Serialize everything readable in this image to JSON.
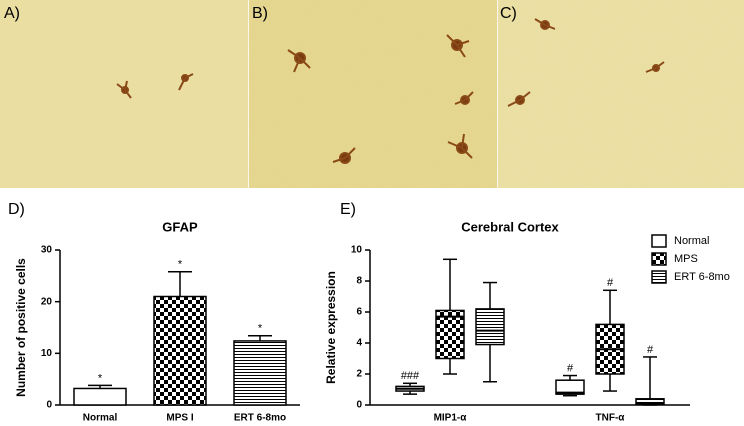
{
  "panels": [
    {
      "label": "A)"
    },
    {
      "label": "B)"
    },
    {
      "label": "C)"
    },
    {
      "label": "D)"
    },
    {
      "label": "E)"
    }
  ],
  "chart_data": [
    {
      "type": "bar",
      "title": "GFAP",
      "y_label": "Number of positive cells",
      "categories": [
        "Normal",
        "MPS I",
        "ERT 6-8mo"
      ],
      "values": [
        3.2,
        21,
        12.4
      ],
      "errors": [
        0.6,
        4.8,
        1.0
      ],
      "annotations": [
        "*",
        "*",
        "*"
      ],
      "patterns": [
        "none",
        "checker",
        "hlines"
      ],
      "color": "#000000",
      "ylim": [
        0,
        30
      ],
      "yticks": [
        0,
        10,
        20,
        30
      ]
    },
    {
      "type": "box",
      "title": "Cerebral Cortex",
      "y_label": "Relative expression",
      "categories": [
        "MIP1-α",
        "TNF-α"
      ],
      "series": [
        {
          "name": "Normal",
          "pattern": "none",
          "color": "#000000",
          "values": [
            {
              "min": 0.7,
              "q1": 0.9,
              "median": 1.05,
              "q3": 1.2,
              "max": 1.4
            },
            {
              "min": 0.6,
              "q1": 0.7,
              "median": 0.8,
              "q3": 1.6,
              "max": 1.9
            }
          ],
          "annotations": [
            "###",
            "#"
          ]
        },
        {
          "name": "MPS",
          "pattern": "checker",
          "color": "#000000",
          "values": [
            {
              "min": 2.0,
              "q1": 3.0,
              "median": 5.7,
              "q3": 6.1,
              "max": 9.4
            },
            {
              "min": 0.9,
              "q1": 2.0,
              "median": 3.6,
              "q3": 5.2,
              "max": 7.4
            }
          ],
          "annotations": [
            null,
            "#"
          ]
        },
        {
          "name": "ERT 6-8mo",
          "pattern": "hlines",
          "color": "#000000",
          "values": [
            {
              "min": 1.5,
              "q1": 3.9,
              "median": 4.8,
              "q3": 6.2,
              "max": 7.9
            },
            {
              "min": 0,
              "q1": 0.05,
              "median": 0.1,
              "q3": 0.4,
              "max": 3.1
            }
          ],
          "annotations": [
            null,
            "#"
          ]
        }
      ],
      "legend": "top-right",
      "ylim": [
        0,
        10
      ],
      "yticks": [
        0,
        2,
        4,
        6,
        8,
        10
      ]
    }
  ]
}
